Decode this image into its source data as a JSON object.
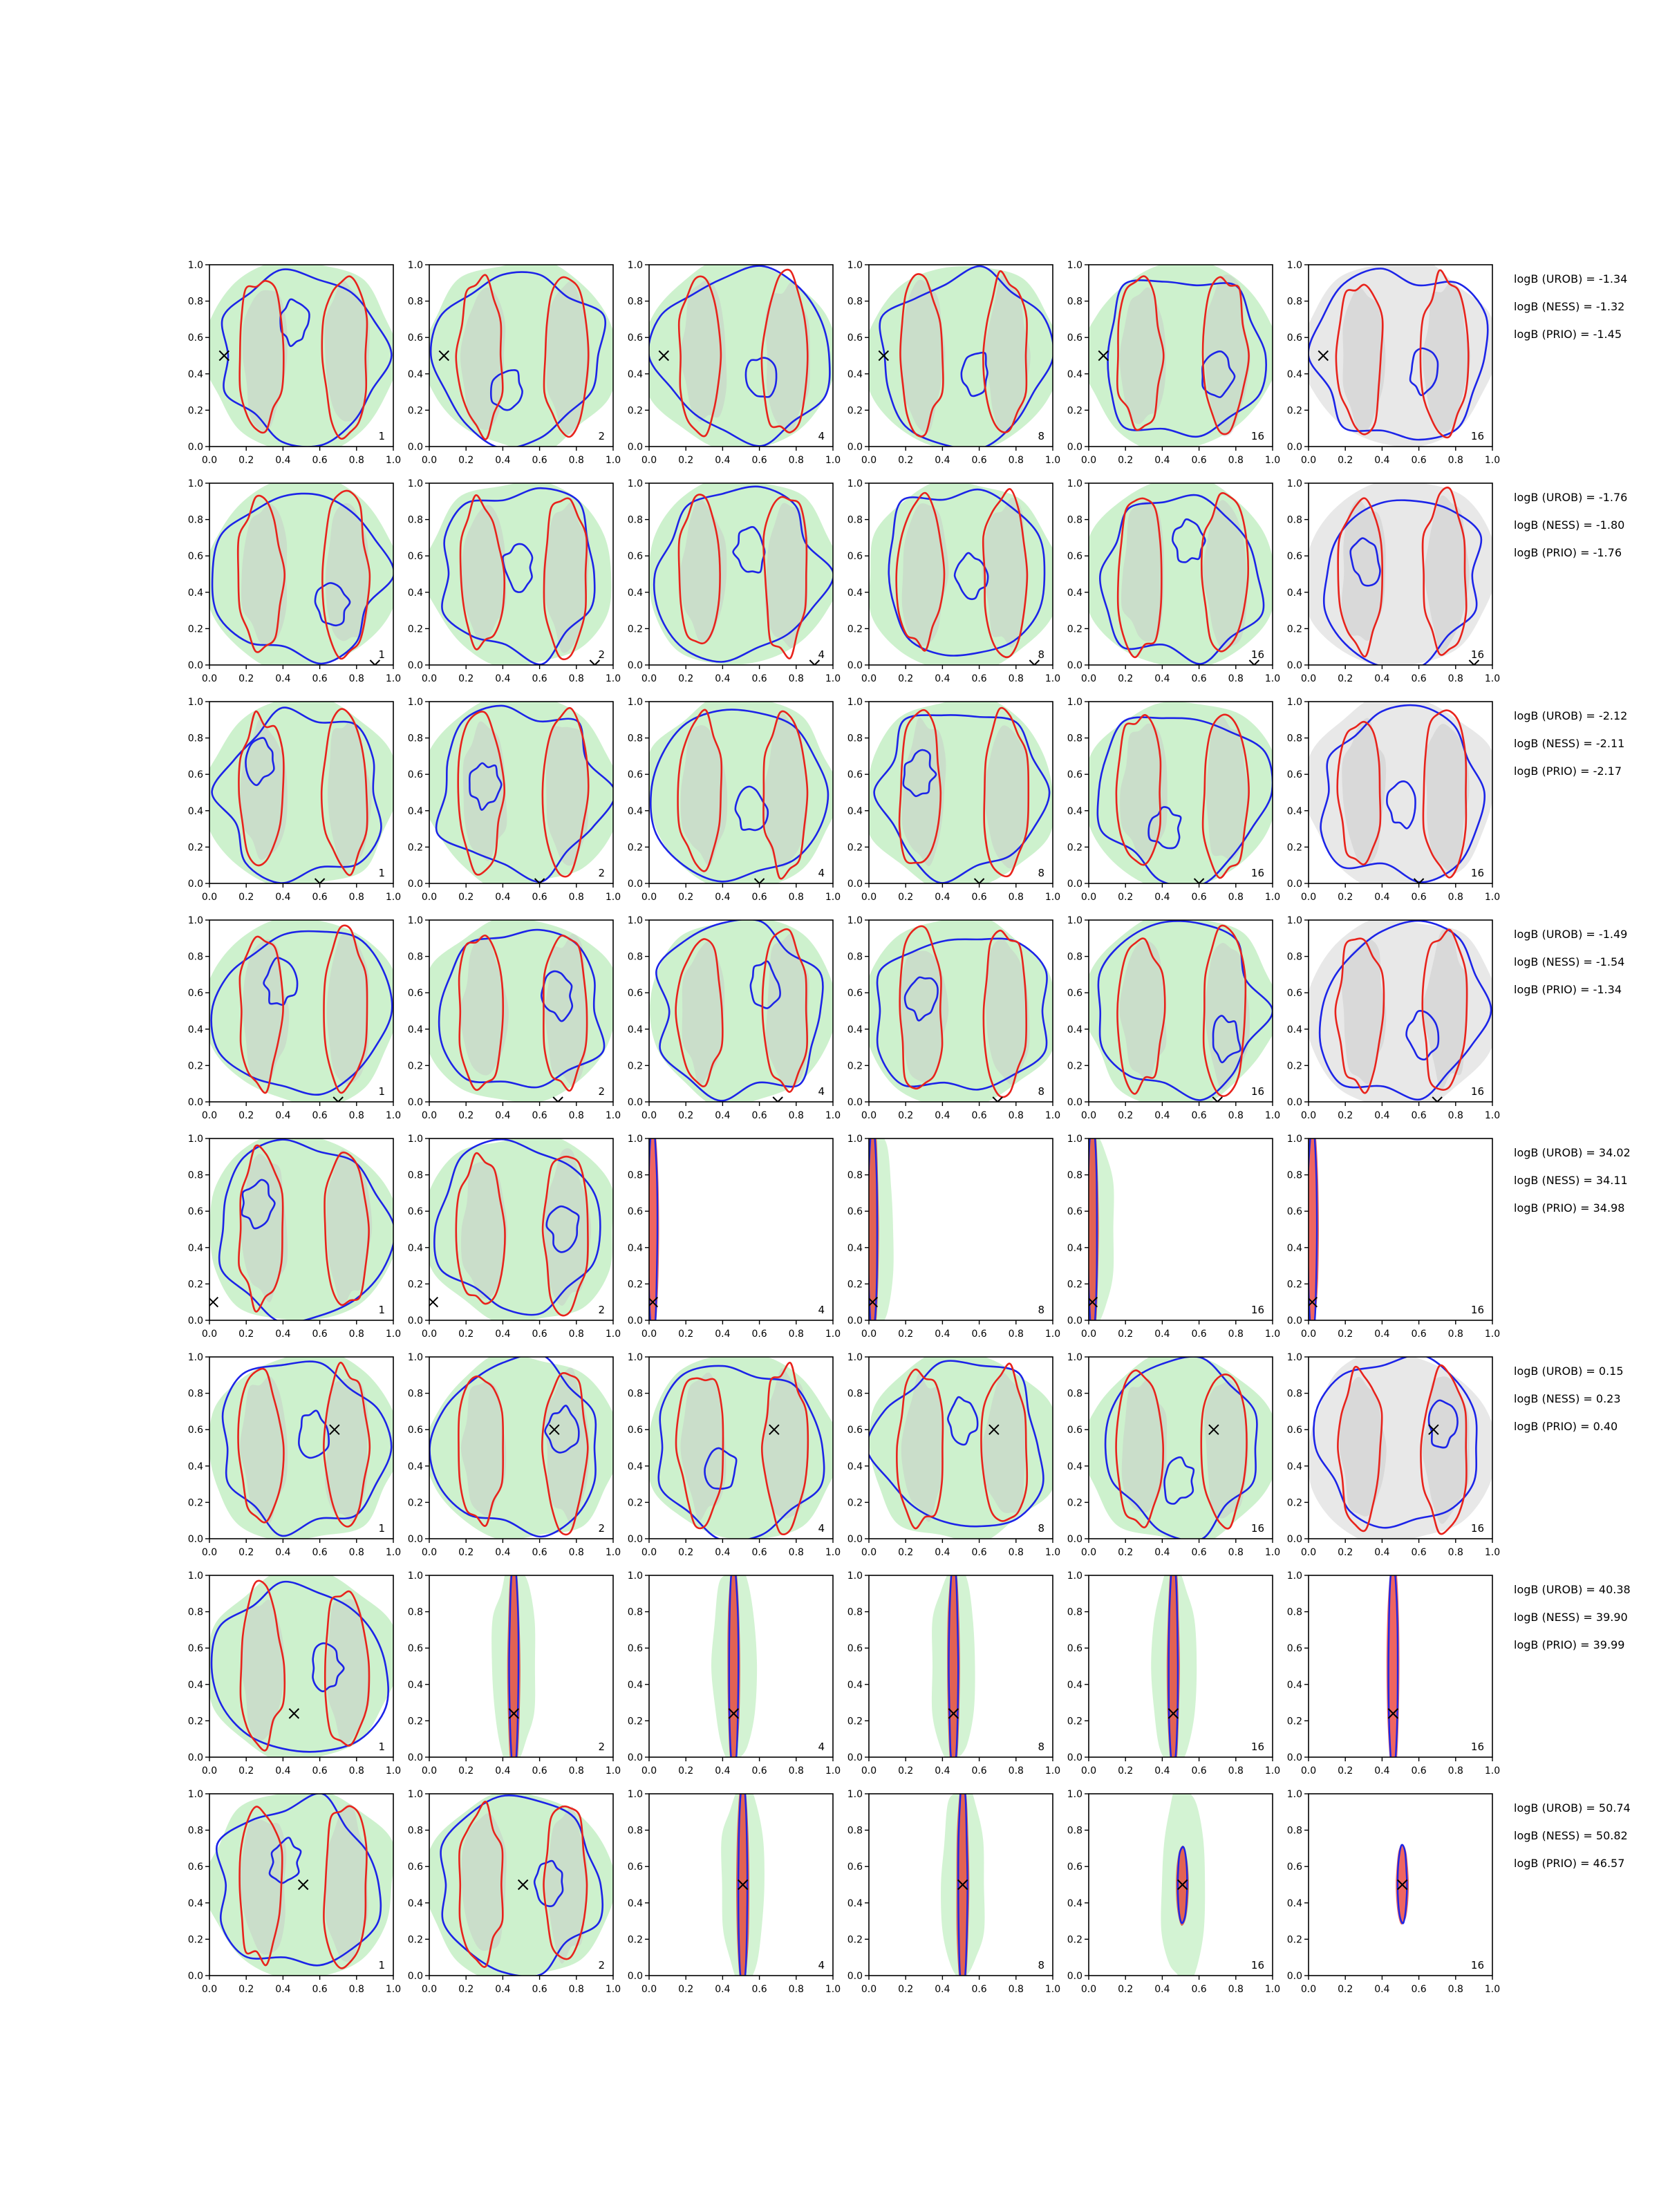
{
  "chart_data": {
    "type": "contour-grid",
    "layout": {
      "rows": 8,
      "cols": 6
    },
    "axes": {
      "xlim": [
        0.0,
        1.0
      ],
      "ylim": [
        0.0,
        1.0
      ],
      "xticks": [
        "0.0",
        "0.2",
        "0.4",
        "0.6",
        "0.8",
        "1.0"
      ],
      "yticks": [
        "0.0",
        "0.2",
        "0.4",
        "0.6",
        "0.8",
        "1.0"
      ]
    },
    "panel_labels": [
      "1",
      "2",
      "4",
      "8",
      "16",
      "16"
    ],
    "colors": {
      "red_contour": "#e8231c",
      "blue_contour": "#1c24e8",
      "green_fill": "#c8f0c8",
      "gray_fill": "#c8c8c8",
      "light_gray_fill": "#e6e6e6",
      "marker": "#000000"
    },
    "rows": [
      {
        "marker": [
          0.08,
          0.5
        ],
        "annotations": [
          "logB (UROB) = -1.34",
          "logB (NESS) = -1.32",
          "logB (PRIO) = -1.45"
        ]
      },
      {
        "marker": [
          0.9,
          0.0
        ],
        "annotations": [
          "logB (UROB) = -1.76",
          "logB (NESS) = -1.80",
          "logB (PRIO) = -1.76"
        ]
      },
      {
        "marker": [
          0.6,
          0.0
        ],
        "annotations": [
          "logB (UROB) = -2.12",
          "logB (NESS) = -2.11",
          "logB (PRIO) = -2.17"
        ]
      },
      {
        "marker": [
          0.7,
          0.0
        ],
        "annotations": [
          "logB (UROB) = -1.49",
          "logB (NESS) = -1.54",
          "logB (PRIO) = -1.34"
        ]
      },
      {
        "marker": [
          0.02,
          0.1
        ],
        "annotations": [
          "logB (UROB) = 34.02",
          "logB (NESS) = 34.11",
          "logB (PRIO) = 34.98"
        ]
      },
      {
        "marker": [
          0.68,
          0.6
        ],
        "annotations": [
          "logB (UROB) = 0.15",
          "logB (NESS) = 0.23",
          "logB (PRIO) = 0.40"
        ]
      },
      {
        "marker": [
          0.46,
          0.24
        ],
        "annotations": [
          "logB (UROB) = 40.38",
          "logB (NESS) = 39.90",
          "logB (PRIO) = 39.99"
        ]
      },
      {
        "marker": [
          0.51,
          0.5
        ],
        "annotations": [
          "logB (UROB) = 50.74",
          "logB (NESS) = 50.82",
          "logB (PRIO) = 46.57"
        ]
      }
    ]
  }
}
